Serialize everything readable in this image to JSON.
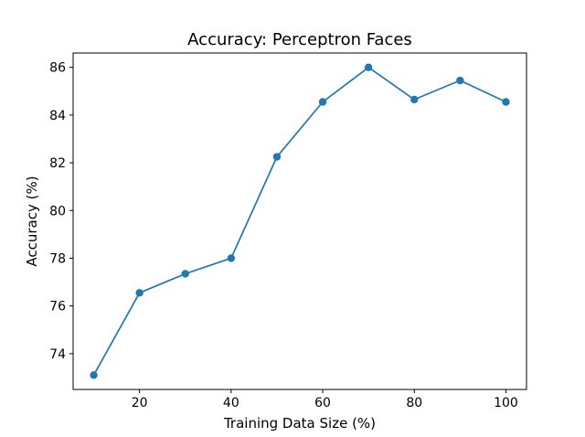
{
  "chart_data": {
    "type": "line",
    "title": "Accuracy: Perceptron Faces",
    "xlabel": "Training Data Size (%)",
    "ylabel": "Accuracy (%)",
    "x": [
      10,
      20,
      30,
      40,
      50,
      60,
      70,
      80,
      90,
      100
    ],
    "series": [
      {
        "values": [
          73.1,
          76.55,
          77.35,
          78.0,
          82.25,
          84.55,
          86.0,
          84.65,
          85.45,
          84.55
        ],
        "color": "#1f77b4",
        "marker": "circle"
      }
    ],
    "xlim": [
      5.5,
      104.5
    ],
    "ylim": [
      72.5,
      86.6
    ],
    "xticks": [
      20,
      40,
      60,
      80,
      100
    ],
    "yticks": [
      74,
      76,
      78,
      80,
      82,
      84,
      86
    ],
    "grid": false,
    "legend": "none"
  }
}
